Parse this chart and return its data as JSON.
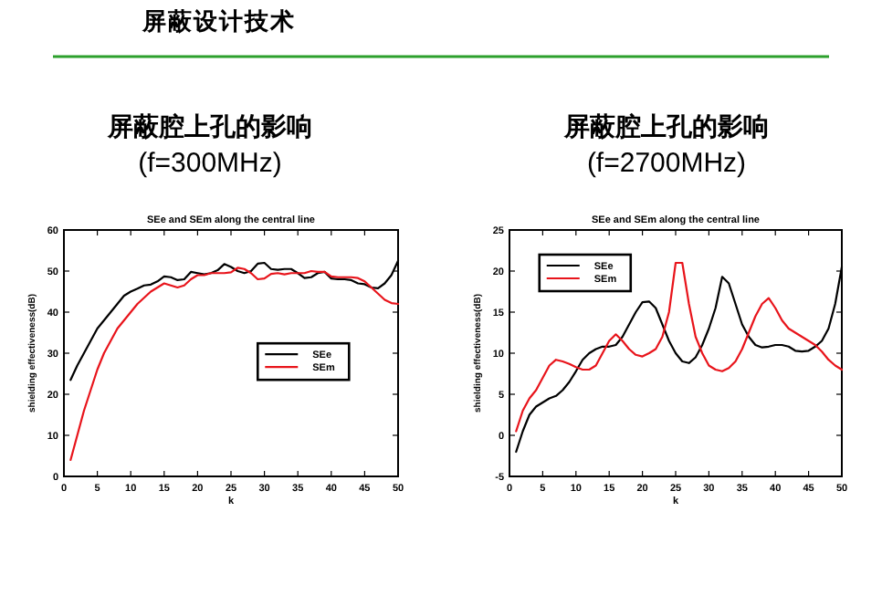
{
  "chart_data": [
    {
      "type": "line",
      "title": "屏蔽腔上孔的影响",
      "subtitle": "(f=300MHz)",
      "annotations": [
        "屏蔽设计技术",
        "SEe and SEm along the central line"
      ],
      "xlabel": "k",
      "ylabel": "shielding effectiveness(dB)",
      "x": [
        1,
        2,
        3,
        4,
        5,
        6,
        7,
        8,
        9,
        10,
        11,
        12,
        13,
        14,
        15,
        16,
        17,
        18,
        19,
        20,
        21,
        22,
        23,
        24,
        25,
        26,
        27,
        28,
        29,
        30,
        31,
        32,
        33,
        34,
        35,
        36,
        37,
        38,
        39,
        40,
        41,
        42,
        43,
        44,
        45,
        46,
        47,
        48,
        49,
        50
      ],
      "series": [
        {
          "name": "SEe",
          "color": "#000000",
          "values": [
            23.5,
            27,
            30,
            33,
            36,
            38,
            40,
            42,
            44,
            45,
            45.7,
            46.5,
            46.7,
            47.5,
            48.7,
            48.5,
            47.8,
            48,
            49.8,
            49.5,
            49.2,
            49.5,
            50.2,
            51.7,
            51,
            50,
            49.5,
            50,
            51.8,
            52,
            50.5,
            50.3,
            50.5,
            50.5,
            49.5,
            48.3,
            48.5,
            49.5,
            49.8,
            48.2,
            48,
            48,
            47.8,
            47,
            46.8,
            46,
            45.8,
            47,
            49,
            52.5
          ]
        },
        {
          "name": "SEm",
          "color": "#e8141b",
          "values": [
            4,
            10,
            16,
            21,
            26,
            30,
            33,
            36,
            38,
            40,
            42,
            43.5,
            45,
            46,
            47,
            46.5,
            46,
            46.5,
            48,
            49,
            49,
            49.5,
            49.5,
            49.5,
            49.7,
            50.8,
            50.5,
            49.5,
            48,
            48.2,
            49.3,
            49.5,
            49.2,
            49.5,
            49.5,
            49.5,
            50,
            49.8,
            49.8,
            48.7,
            48.5,
            48.5,
            48.5,
            48.3,
            47.5,
            46,
            44.5,
            43,
            42.2,
            42
          ]
        }
      ],
      "xlim": [
        0,
        50
      ],
      "xticks": [
        0,
        5,
        10,
        15,
        20,
        25,
        30,
        35,
        40,
        45,
        50
      ],
      "ylim": [
        0,
        60
      ],
      "yticks": [
        0,
        10,
        20,
        30,
        40,
        50,
        60
      ],
      "grid": false,
      "legend": "right",
      "line_style": "solid"
    },
    {
      "type": "line",
      "title": "屏蔽腔上孔的影响",
      "subtitle": "(f=2700MHz)",
      "annotations": [
        "SEe and SEm along the central line"
      ],
      "xlabel": "k",
      "ylabel": "shielding effectiveness(dB)",
      "x": [
        1,
        2,
        3,
        4,
        5,
        6,
        7,
        8,
        9,
        10,
        11,
        12,
        13,
        14,
        15,
        16,
        17,
        18,
        19,
        20,
        21,
        22,
        23,
        24,
        25,
        26,
        27,
        28,
        29,
        30,
        31,
        32,
        33,
        34,
        35,
        36,
        37,
        38,
        39,
        40,
        41,
        42,
        43,
        44,
        45,
        46,
        47,
        48,
        49,
        50
      ],
      "series": [
        {
          "name": "SEe",
          "color": "#000000",
          "values": [
            -2,
            0.5,
            2.5,
            3.5,
            4,
            4.5,
            4.8,
            5.5,
            6.5,
            7.8,
            9.2,
            10,
            10.5,
            10.8,
            10.8,
            11,
            12,
            13.5,
            15,
            16.2,
            16.3,
            15.5,
            13.5,
            11.5,
            10,
            9,
            8.8,
            9.5,
            11,
            13,
            15.5,
            19.3,
            18.5,
            16,
            13.5,
            12,
            11,
            10.7,
            10.8,
            11,
            11,
            10.8,
            10.3,
            10.2,
            10.3,
            10.8,
            11.5,
            13,
            16,
            20.5
          ]
        },
        {
          "name": "SEm",
          "color": "#e8141b",
          "values": [
            0.5,
            3,
            4.5,
            5.5,
            7,
            8.5,
            9.2,
            9,
            8.7,
            8.3,
            8,
            8,
            8.5,
            10,
            11.5,
            12.3,
            11.5,
            10.5,
            9.8,
            9.6,
            10,
            10.5,
            12,
            15,
            21,
            21,
            16,
            12,
            10,
            8.5,
            8,
            7.8,
            8.2,
            9,
            10.5,
            12.5,
            14.5,
            16,
            16.7,
            15.5,
            14,
            13,
            12.5,
            12,
            11.5,
            11,
            10.2,
            9.2,
            8.5,
            8
          ]
        }
      ],
      "xlim": [
        0,
        50
      ],
      "xticks": [
        0,
        5,
        10,
        15,
        20,
        25,
        30,
        35,
        40,
        45,
        50
      ],
      "ylim": [
        -5,
        25
      ],
      "yticks": [
        -5,
        0,
        5,
        10,
        15,
        20,
        25
      ],
      "grid": false,
      "legend": "top left",
      "line_style": "solid"
    }
  ]
}
